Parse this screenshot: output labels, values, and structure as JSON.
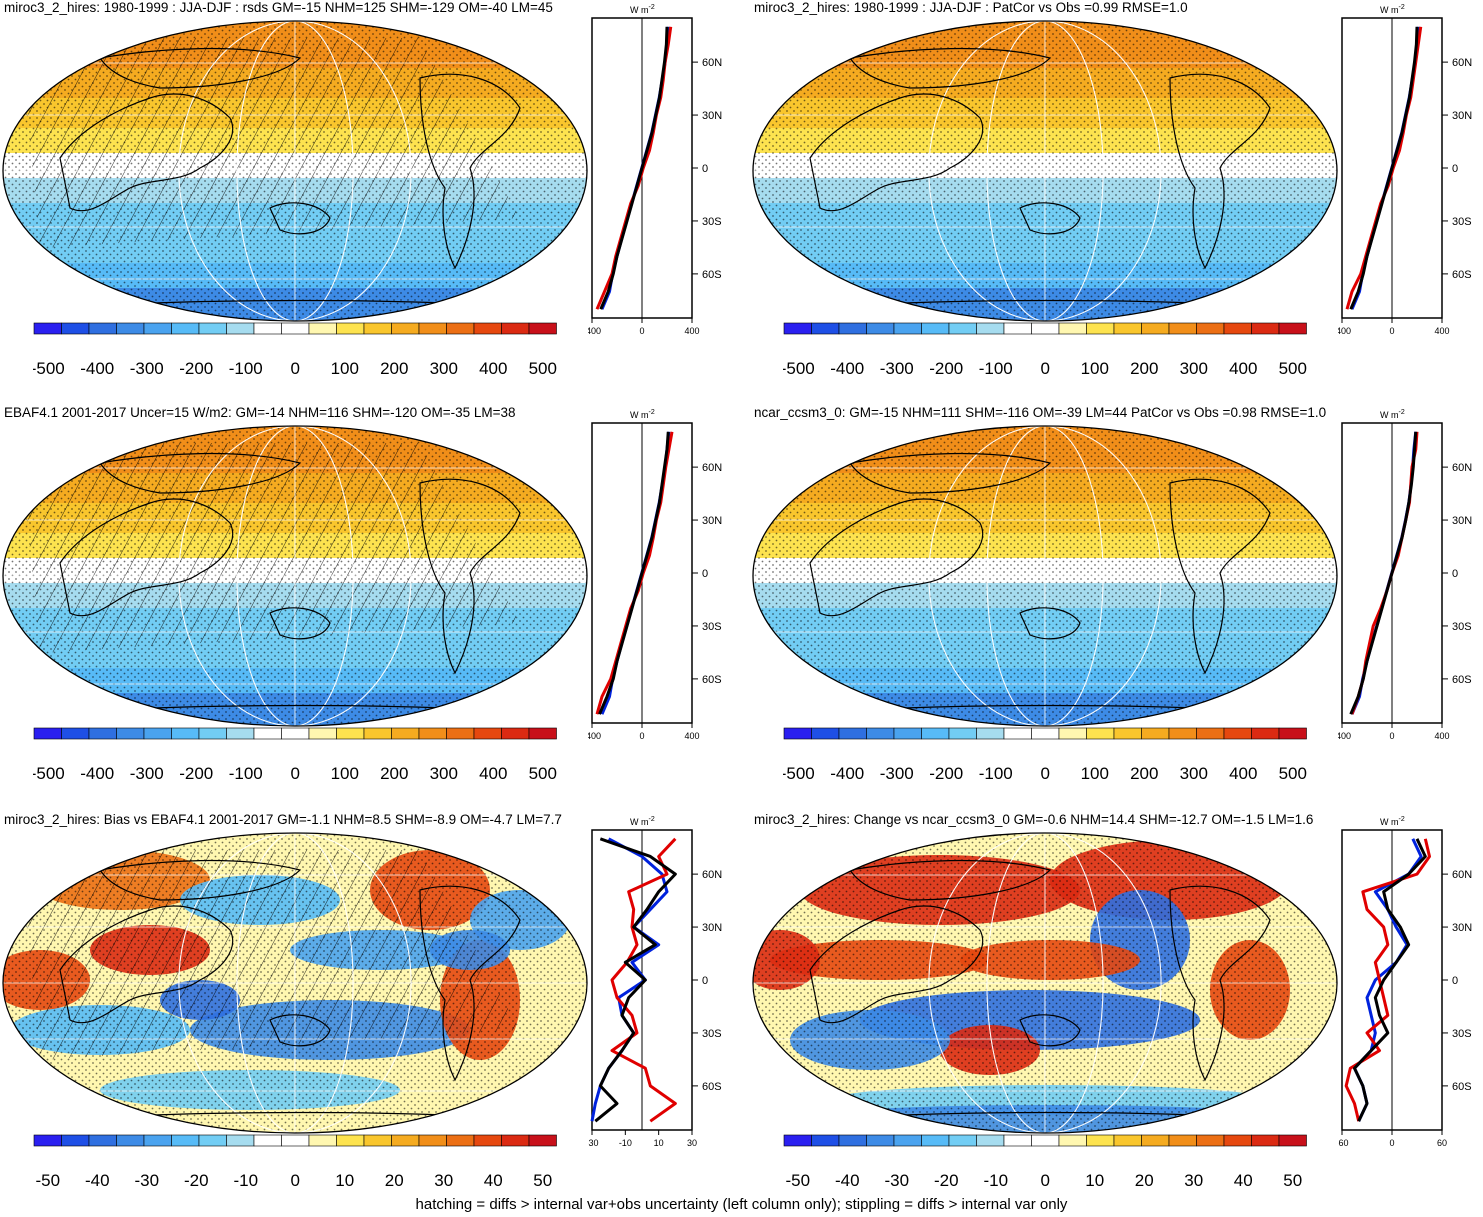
{
  "footnote": "hatching = diffs > internal var+obs uncertainty (left column only); stippling = diffs > internal var only",
  "colors": {
    "scale": [
      "#2a1ff0",
      "#1e4fe6",
      "#2f6fe0",
      "#3d8be6",
      "#4aa3ef",
      "#57bbf7",
      "#72cdf4",
      "#a6dcef",
      "#ffffff",
      "#ffffff",
      "#fff7b0",
      "#fde34f",
      "#f9c62d",
      "#f5ab20",
      "#f18e19",
      "#ec6f14",
      "#e6480f",
      "#db2a12",
      "#c8101a"
    ],
    "obs_line": "#000000",
    "model_line": "#e00000",
    "alt_line": "#0022dd",
    "coast": "#000000"
  },
  "chart_data": [
    {
      "type": "heatmap",
      "id": "p1",
      "title": "miroc3_2_hires: 1980-1999 : JJA-DJF : rsds GM=-15 NHM=125 SHM=-129 OM=-40 LM=45",
      "colorbar_ticks": [
        "-500",
        "-400",
        "-300",
        "-200",
        "-100",
        "0",
        "100",
        "200",
        "300",
        "400",
        "500"
      ],
      "zonal_mean": {
        "unit": "W m-2",
        "lat_ticks": [
          "60N",
          "30N",
          "0",
          "30S",
          "60S"
        ],
        "x_ticks": [
          "-400",
          "0",
          "400"
        ],
        "xlim": [
          -400,
          400
        ],
        "lat": [
          80,
          70,
          60,
          50,
          40,
          30,
          20,
          10,
          0,
          -10,
          -20,
          -30,
          -40,
          -50,
          -60,
          -70,
          -80
        ],
        "obs": [
          200,
          195,
          180,
          160,
          140,
          110,
          80,
          40,
          0,
          -40,
          -80,
          -120,
          -160,
          -200,
          -230,
          -270,
          -330
        ],
        "model": [
          230,
          210,
          185,
          170,
          150,
          115,
          90,
          60,
          10,
          -30,
          -90,
          -130,
          -170,
          -210,
          -240,
          -300,
          -360
        ],
        "alt": [
          210,
          200,
          185,
          162,
          138,
          108,
          78,
          38,
          -2,
          -42,
          -82,
          -122,
          -162,
          -200,
          -235,
          -260,
          -320
        ]
      },
      "hatched": true
    },
    {
      "type": "heatmap",
      "id": "p2",
      "title": "miroc3_2_hires: 1980-1999 : JJA-DJF : PatCor vs Obs =0.99 RMSE=1.0",
      "colorbar_ticks": [
        "-500",
        "-400",
        "-300",
        "-200",
        "-100",
        "0",
        "100",
        "200",
        "300",
        "400",
        "500"
      ],
      "zonal_mean": {
        "unit": "W m-2",
        "lat_ticks": [
          "60N",
          "30N",
          "0",
          "30S",
          "60S"
        ],
        "x_ticks": [
          "-400",
          "0",
          "400"
        ],
        "xlim": [
          -400,
          400
        ],
        "lat": [
          80,
          70,
          60,
          50,
          40,
          30,
          20,
          10,
          0,
          -10,
          -20,
          -30,
          -40,
          -50,
          -60,
          -70,
          -80
        ],
        "obs": [
          200,
          195,
          180,
          160,
          140,
          110,
          80,
          40,
          0,
          -40,
          -80,
          -120,
          -160,
          -200,
          -230,
          -270,
          -330
        ],
        "model": [
          230,
          210,
          190,
          170,
          150,
          115,
          90,
          60,
          10,
          -30,
          -90,
          -130,
          -170,
          -210,
          -250,
          -320,
          -360
        ],
        "alt": [
          210,
          200,
          185,
          162,
          138,
          108,
          78,
          38,
          -2,
          -42,
          -82,
          -122,
          -162,
          -200,
          -235,
          -260,
          -320
        ]
      },
      "hatched": false
    },
    {
      "type": "heatmap",
      "id": "p3",
      "title": "EBAF4.1 2001-2017 Uncer=15 W/m2: GM=-14 NHM=116 SHM=-120 OM=-35 LM=38",
      "colorbar_ticks": [
        "-500",
        "-400",
        "-300",
        "-200",
        "-100",
        "0",
        "100",
        "200",
        "300",
        "400",
        "500"
      ],
      "zonal_mean": {
        "unit": "W m-2",
        "lat_ticks": [
          "60N",
          "30N",
          "0",
          "30S",
          "60S"
        ],
        "x_ticks": [
          "-400",
          "0",
          "400"
        ],
        "xlim": [
          -400,
          400
        ],
        "lat": [
          80,
          70,
          60,
          50,
          40,
          30,
          20,
          10,
          0,
          -10,
          -20,
          -30,
          -40,
          -50,
          -60,
          -70,
          -80
        ],
        "obs": [
          210,
          200,
          180,
          160,
          140,
          110,
          80,
          40,
          0,
          -40,
          -80,
          -120,
          -160,
          -200,
          -230,
          -280,
          -340
        ],
        "model": [
          240,
          215,
          190,
          170,
          150,
          115,
          90,
          60,
          10,
          -30,
          -90,
          -130,
          -170,
          -210,
          -250,
          -320,
          -360
        ],
        "alt": [
          215,
          200,
          185,
          162,
          138,
          108,
          78,
          38,
          -2,
          -42,
          -82,
          -122,
          -162,
          -200,
          -235,
          -260,
          -320
        ]
      },
      "hatched": true
    },
    {
      "type": "heatmap",
      "id": "p4",
      "title": "ncar_ccsm3_0: GM=-15 NHM=111 SHM=-116 OM=-39 LM=44 PatCor vs Obs =0.98 RMSE=1.0",
      "colorbar_ticks": [
        "-500",
        "-400",
        "-300",
        "-200",
        "-100",
        "0",
        "100",
        "200",
        "300",
        "400",
        "500"
      ],
      "zonal_mean": {
        "unit": "W m-2",
        "lat_ticks": [
          "60N",
          "30N",
          "0",
          "30S",
          "60S"
        ],
        "x_ticks": [
          "-400",
          "0",
          "400"
        ],
        "xlim": [
          -400,
          400
        ],
        "lat": [
          80,
          70,
          60,
          50,
          40,
          30,
          20,
          10,
          0,
          -10,
          -20,
          -30,
          -40,
          -50,
          -60,
          -70,
          -80
        ],
        "obs": [
          190,
          180,
          170,
          155,
          135,
          110,
          80,
          40,
          0,
          -40,
          -80,
          -120,
          -160,
          -200,
          -230,
          -270,
          -330
        ],
        "model": [
          200,
          190,
          160,
          150,
          140,
          110,
          80,
          50,
          0,
          -40,
          -90,
          -150,
          -180,
          -210,
          -230,
          -270,
          -320
        ],
        "alt": [
          190,
          175,
          165,
          152,
          135,
          108,
          78,
          38,
          -2,
          -42,
          -82,
          -122,
          -162,
          -200,
          -235,
          -260,
          -320
        ]
      },
      "hatched": false
    },
    {
      "type": "heatmap",
      "id": "p5",
      "title": "miroc3_2_hires: Bias vs EBAF4.1 2001-2017 GM=-1.1 NHM=8.5 SHM=-8.9 OM=-4.7 LM=7.7",
      "colorbar_ticks": [
        "-50",
        "-40",
        "-30",
        "-20",
        "-10",
        "0",
        "10",
        "20",
        "30",
        "40",
        "50"
      ],
      "zonal_mean": {
        "unit": "W m-2",
        "lat_ticks": [
          "60N",
          "30N",
          "0",
          "30S",
          "60S"
        ],
        "x_ticks": [
          "-30",
          "-10",
          "10",
          "30"
        ],
        "xlim": [
          -30,
          30
        ],
        "lat": [
          80,
          70,
          60,
          50,
          40,
          30,
          20,
          10,
          0,
          -10,
          -20,
          -30,
          -40,
          -50,
          -60,
          -70,
          -80
        ],
        "obs": [
          -25,
          5,
          20,
          10,
          3,
          -5,
          8,
          -10,
          2,
          -8,
          -12,
          -5,
          -12,
          -20,
          -25,
          -15,
          -28
        ],
        "model": [
          20,
          10,
          15,
          -8,
          -5,
          -6,
          -3,
          -9,
          -18,
          -15,
          -6,
          -3,
          -18,
          2,
          5,
          20,
          5
        ],
        "alt": [
          -20,
          0,
          12,
          15,
          5,
          -5,
          10,
          -6,
          2,
          -14,
          -12,
          -5,
          -12,
          -20,
          -25,
          -28,
          -30
        ]
      },
      "hatched": true
    },
    {
      "type": "heatmap",
      "id": "p6",
      "title": "miroc3_2_hires: Change vs ncar_ccsm3_0 GM=-0.6 NHM=14.4 SHM=-12.7 OM=-1.5 LM=1.6",
      "colorbar_ticks": [
        "-50",
        "-40",
        "-30",
        "-20",
        "-10",
        "0",
        "10",
        "20",
        "30",
        "40",
        "50"
      ],
      "zonal_mean": {
        "unit": "W m-2",
        "lat_ticks": [
          "60N",
          "30N",
          "0",
          "30S",
          "60S"
        ],
        "x_ticks": [
          "-60",
          "0",
          "60"
        ],
        "xlim": [
          -60,
          60
        ],
        "lat": [
          80,
          70,
          60,
          50,
          40,
          30,
          20,
          10,
          0,
          -10,
          -20,
          -30,
          -40,
          -50,
          -60,
          -70,
          -80
        ],
        "obs": [
          30,
          40,
          20,
          -10,
          -5,
          10,
          20,
          5,
          -10,
          -20,
          -15,
          -5,
          -25,
          -45,
          -35,
          -30,
          -40
        ],
        "model": [
          40,
          45,
          30,
          -35,
          -30,
          -10,
          -5,
          -20,
          -15,
          -10,
          -5,
          -30,
          -15,
          -50,
          -55,
          -45,
          -40
        ],
        "alt": [
          25,
          35,
          20,
          -20,
          -5,
          5,
          18,
          5,
          -20,
          -30,
          -25,
          -20,
          -25,
          -45,
          -35,
          -30,
          -40
        ]
      },
      "hatched": false
    }
  ]
}
